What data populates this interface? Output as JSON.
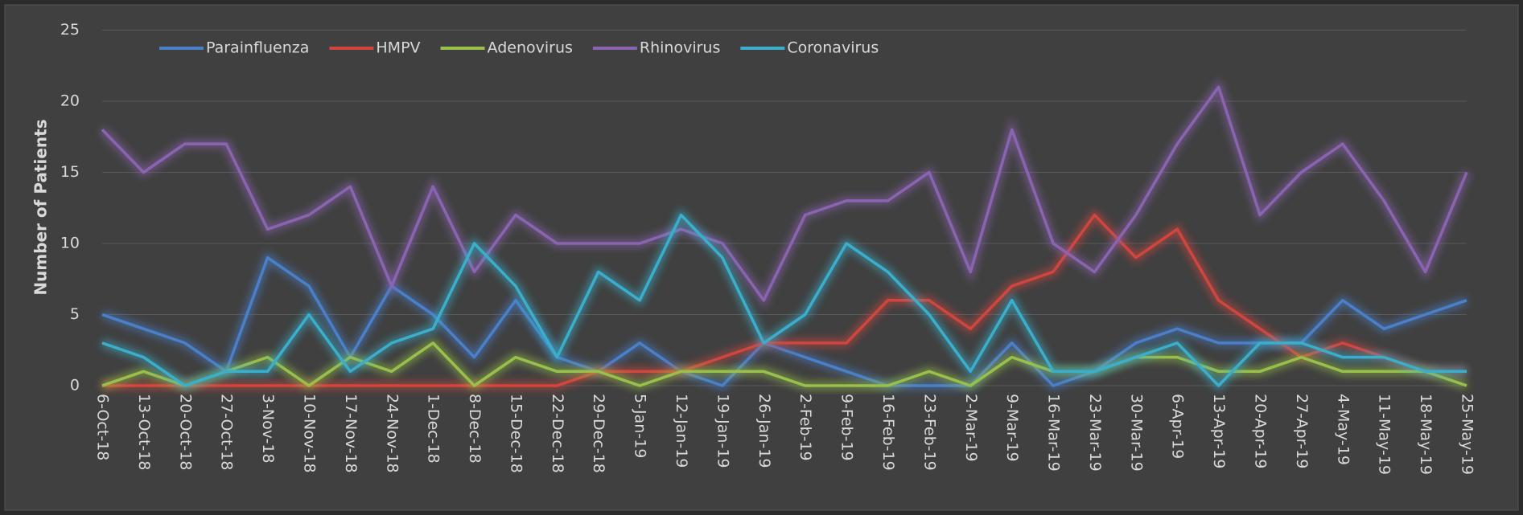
{
  "chart_data": {
    "type": "line",
    "y_label": "Number of Patients",
    "categories": [
      "6-Oct-18",
      "13-Oct-18",
      "20-Oct-18",
      "27-Oct-18",
      "3-Nov-18",
      "10-Nov-18",
      "17-Nov-18",
      "24-Nov-18",
      "1-Dec-18",
      "8-Dec-18",
      "15-Dec-18",
      "22-Dec-18",
      "29-Dec-18",
      "5-Jan-19",
      "12-Jan-19",
      "19-Jan-19",
      "26-Jan-19",
      "2-Feb-19",
      "9-Feb-19",
      "16-Feb-19",
      "23-Feb-19",
      "2-Mar-19",
      "9-Mar-19",
      "16-Mar-19",
      "23-Mar-19",
      "30-Mar-19",
      "6-Apr-19",
      "13-Apr-19",
      "20-Apr-19",
      "27-Apr-19",
      "4-May-19",
      "11-May-19",
      "18-May-19",
      "25-May-19"
    ],
    "series": [
      {
        "name": "Parainfluenza",
        "color": "#4a7fc9",
        "values": [
          5,
          4,
          3,
          1,
          9,
          7,
          2,
          7,
          5,
          2,
          6,
          2,
          1,
          3,
          1,
          0,
          3,
          2,
          1,
          0,
          0,
          0,
          3,
          0,
          1,
          3,
          4,
          3,
          3,
          3,
          6,
          4,
          5,
          6
        ]
      },
      {
        "name": "HMPV",
        "color": "#d0463f",
        "values": [
          0,
          0,
          0,
          0,
          0,
          0,
          0,
          0,
          0,
          0,
          0,
          0,
          1,
          1,
          1,
          2,
          3,
          3,
          3,
          6,
          6,
          4,
          7,
          8,
          12,
          9,
          11,
          6,
          4,
          2,
          3,
          2,
          1,
          1
        ]
      },
      {
        "name": "Adenovirus",
        "color": "#98c04a",
        "values": [
          0,
          1,
          0,
          1,
          2,
          0,
          2,
          1,
          3,
          0,
          2,
          1,
          1,
          0,
          1,
          1,
          1,
          0,
          0,
          0,
          1,
          0,
          2,
          1,
          1,
          2,
          2,
          1,
          1,
          2,
          1,
          1,
          1,
          0
        ]
      },
      {
        "name": "Rhinovirus",
        "color": "#8a64b0",
        "values": [
          18,
          15,
          17,
          17,
          11,
          12,
          14,
          7,
          14,
          8,
          12,
          10,
          10,
          10,
          11,
          10,
          6,
          12,
          13,
          13,
          15,
          8,
          18,
          10,
          8,
          12,
          17,
          21,
          12,
          15,
          17,
          13,
          8,
          15
        ]
      },
      {
        "name": "Coronavirus",
        "color": "#3aaecb",
        "values": [
          3,
          2,
          0,
          1,
          1,
          5,
          1,
          3,
          4,
          10,
          7,
          2,
          8,
          6,
          12,
          9,
          3,
          5,
          10,
          8,
          5,
          1,
          6,
          1,
          1,
          2,
          3,
          0,
          3,
          3,
          2,
          2,
          1,
          1
        ]
      }
    ],
    "ylim": [
      0,
      25
    ],
    "yticks": [
      0,
      5,
      10,
      15,
      20,
      25
    ],
    "grid": true,
    "legend": "top"
  }
}
